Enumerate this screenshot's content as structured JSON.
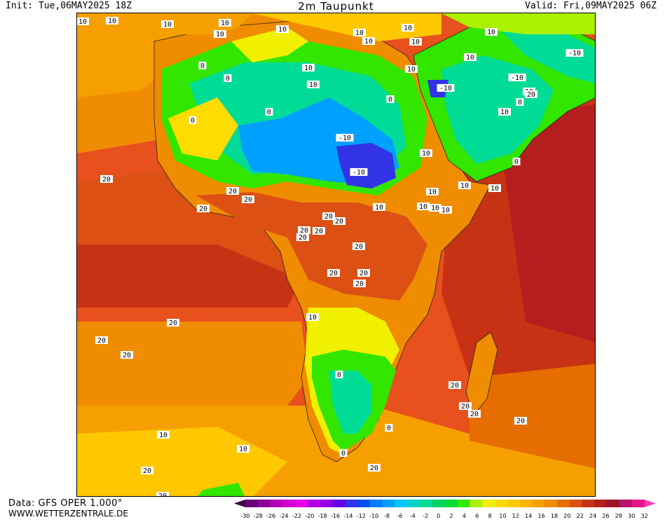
{
  "header": {
    "init": "Init: Tue,06MAY2025 18Z",
    "title": "2m Taupunkt",
    "valid": "Valid: Fri,09MAY2025 06Z"
  },
  "footer": {
    "data_source": "Data: GFS OPER 1.000°",
    "website": "WWW.WETTERZENTRALE.DE"
  },
  "colorbar": {
    "ticks": [
      "-30",
      "-28",
      "-26",
      "-24",
      "-22",
      "-20",
      "-18",
      "-16",
      "-14",
      "-12",
      "-10",
      "-8",
      "-6",
      "-4",
      "-2",
      "0",
      "2",
      "4",
      "6",
      "8",
      "10",
      "12",
      "14",
      "16",
      "18",
      "20",
      "22",
      "24",
      "26",
      "28",
      "30",
      "32"
    ],
    "colors": [
      "#3d0045",
      "#66007a",
      "#8c0096",
      "#b400b4",
      "#d200d2",
      "#e600e6",
      "#b400e6",
      "#9600e6",
      "#6400e6",
      "#3232e6",
      "#0050f0",
      "#0080ff",
      "#00a0ff",
      "#00c8ff",
      "#00d2c8",
      "#00dc96",
      "#00d264",
      "#00dc32",
      "#32e600",
      "#aaf000",
      "#f0f000",
      "#ffdc00",
      "#ffc800",
      "#ffb400",
      "#f5a000",
      "#f08c00",
      "#e66e00",
      "#dc5014",
      "#c83214",
      "#b41e1e",
      "#9a1428",
      "#b4146e",
      "#e6148c",
      "#ff3cb4"
    ]
  },
  "map": {
    "ocean_color": "#e8501e",
    "contour_labels": [
      {
        "v": "10"
      },
      {
        "v": "10"
      },
      {
        "v": "10"
      },
      {
        "v": "10"
      },
      {
        "v": "10"
      },
      {
        "v": "10"
      },
      {
        "v": "10"
      },
      {
        "v": "10"
      },
      {
        "v": "10"
      },
      {
        "v": "10"
      },
      {
        "v": "10"
      },
      {
        "v": "10"
      },
      {
        "v": "10"
      },
      {
        "v": "10"
      },
      {
        "v": "10"
      },
      {
        "v": "0"
      },
      {
        "v": "0"
      },
      {
        "v": "0"
      },
      {
        "v": "0"
      },
      {
        "v": "0"
      },
      {
        "v": "-10"
      },
      {
        "v": "-10"
      },
      {
        "v": "-10"
      },
      {
        "v": "-10"
      },
      {
        "v": "20"
      },
      {
        "v": "20"
      },
      {
        "v": "20"
      },
      {
        "v": "20"
      },
      {
        "v": "20"
      },
      {
        "v": "20"
      },
      {
        "v": "20"
      },
      {
        "v": "20"
      },
      {
        "v": "20"
      },
      {
        "v": "20"
      },
      {
        "v": "20"
      },
      {
        "v": "20"
      },
      {
        "v": "20"
      },
      {
        "v": "20"
      },
      {
        "v": "20"
      },
      {
        "v": "20"
      },
      {
        "v": "20"
      },
      {
        "v": "20"
      },
      {
        "v": "20"
      },
      {
        "v": "0"
      },
      {
        "v": "0"
      },
      {
        "v": "0"
      },
      {
        "v": "10"
      },
      {
        "v": "10"
      },
      {
        "v": "10"
      },
      {
        "v": "10"
      },
      {
        "v": "10"
      },
      {
        "v": "10"
      },
      {
        "v": "10"
      },
      {
        "v": "10"
      },
      {
        "v": "10"
      },
      {
        "v": "10"
      },
      {
        "v": "10"
      },
      {
        "v": "20"
      },
      {
        "v": "20"
      },
      {
        "v": "20"
      },
      {
        "v": "20"
      },
      {
        "v": "10"
      },
      {
        "v": "10"
      },
      {
        "v": "0"
      },
      {
        "v": "-10"
      },
      {
        "v": "0"
      },
      {
        "v": "10"
      },
      {
        "v": "20"
      }
    ]
  }
}
